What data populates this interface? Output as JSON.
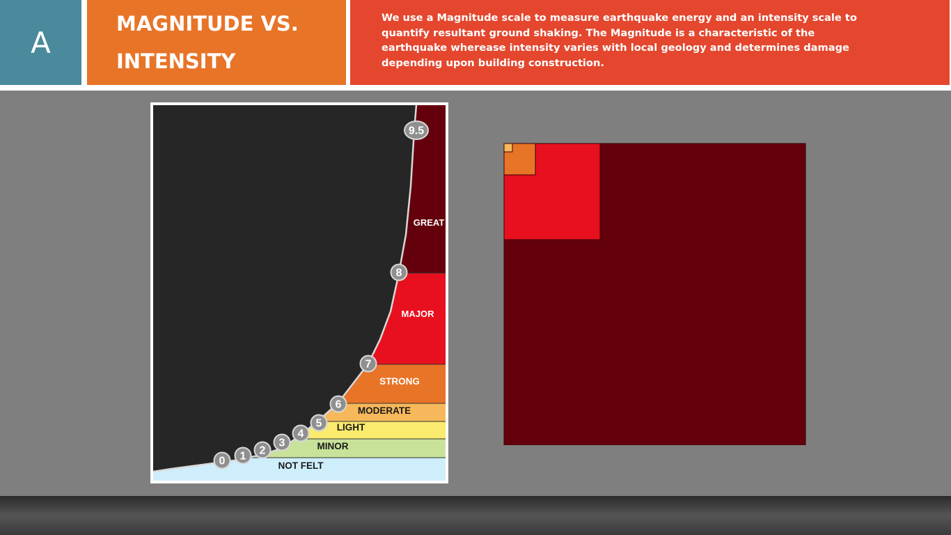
{
  "header": {
    "section_letter": "A",
    "title": "MAGNITUDE VS.\nINTENSITY",
    "description": "We use a Magnitude scale to measure earthquake energy and an intensity scale to quantify resultant ground shaking. The Magnitude is a characteristic of the earthquake wherease intensity varies with local geology and determines damage depending upon building construction."
  },
  "colors": {
    "teal": "#4a8a9c",
    "orange": "#e87428",
    "red_orange": "#e4472e",
    "dark_panel": "#262626",
    "maroon": "#64000c",
    "red": "#e8101e",
    "strong_orange": "#e87428",
    "moderate": "#f6b85a",
    "light": "#faea6e",
    "minor": "#c8e29a",
    "not_felt": "#cfeefb"
  },
  "intensity_bands": [
    {
      "label": "GREAT",
      "color": "#64000c",
      "text_color": "#ffffff"
    },
    {
      "label": "MAJOR",
      "color": "#e8101e",
      "text_color": "#ffffff"
    },
    {
      "label": "STRONG",
      "color": "#e87428",
      "text_color": "#ffffff"
    },
    {
      "label": "MODERATE",
      "color": "#f6b85a",
      "text_color": "#1a1a1a"
    },
    {
      "label": "LIGHT",
      "color": "#faea6e",
      "text_color": "#1a1a1a"
    },
    {
      "label": "MINOR",
      "color": "#c8e29a",
      "text_color": "#1a1a1a"
    },
    {
      "label": "NOT FELT",
      "color": "#cfeefb",
      "text_color": "#1a1a1a"
    }
  ],
  "magnitude_markers": [
    "0",
    "1",
    "2",
    "3",
    "4",
    "5",
    "6",
    "7",
    "8",
    "9.5"
  ],
  "energy_squares": [
    {
      "color": "#64000c"
    },
    {
      "color": "#e8101e"
    },
    {
      "color": "#e87428"
    },
    {
      "color": "#f6b85a"
    }
  ]
}
